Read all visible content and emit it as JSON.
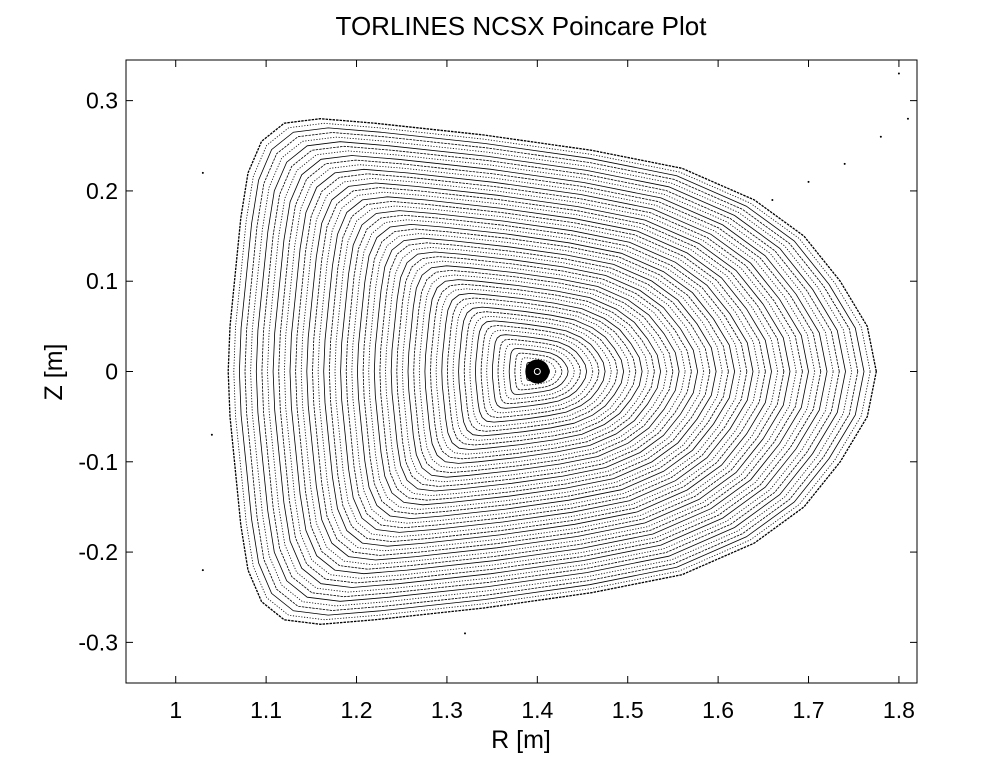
{
  "chart_data": {
    "type": "scatter",
    "title": "TORLINES NCSX Poincare Plot",
    "xlabel": "R [m]",
    "ylabel": "Z [m]",
    "xlim": [
      0.945,
      1.82
    ],
    "ylim": [
      -0.345,
      0.345
    ],
    "x_ticks": [
      1,
      1.1,
      1.2,
      1.3,
      1.4,
      1.5,
      1.6,
      1.7,
      1.8
    ],
    "x_tick_labels": [
      "1",
      "1.1",
      "1.2",
      "1.3",
      "1.4",
      "1.5",
      "1.6",
      "1.7",
      "1.8"
    ],
    "y_ticks": [
      0.3,
      0.2,
      0.1,
      0,
      -0.1,
      -0.2,
      -0.3
    ],
    "y_tick_labels": [
      "0.3",
      "0.2",
      "0.1",
      "0",
      "-0.1",
      "-0.2",
      "-0.3"
    ],
    "grid": false,
    "marker_color": "#000000",
    "magnetic_axis": {
      "R": 1.4,
      "Z": 0.0
    },
    "outer_boundary": {
      "R": [
        1.775,
        1.765,
        1.735,
        1.695,
        1.64,
        1.56,
        1.46,
        1.34,
        1.22,
        1.16,
        1.12,
        1.095,
        1.08,
        1.072,
        1.066,
        1.06,
        1.058,
        1.06,
        1.066,
        1.072,
        1.08,
        1.095,
        1.12,
        1.16,
        1.22,
        1.34,
        1.46,
        1.56,
        1.64,
        1.695,
        1.735,
        1.765,
        1.775
      ],
      "Z": [
        0.0,
        0.05,
        0.1,
        0.15,
        0.19,
        0.225,
        0.245,
        0.262,
        0.275,
        0.28,
        0.275,
        0.255,
        0.22,
        0.17,
        0.11,
        0.05,
        0.0,
        -0.05,
        -0.11,
        -0.17,
        -0.22,
        -0.255,
        -0.275,
        -0.28,
        -0.275,
        -0.262,
        -0.245,
        -0.225,
        -0.19,
        -0.15,
        -0.1,
        -0.05,
        0.0
      ]
    },
    "surface_count": 55,
    "stray_points": [
      {
        "R": 1.66,
        "Z": 0.19
      },
      {
        "R": 1.7,
        "Z": 0.21
      },
      {
        "R": 1.74,
        "Z": 0.23
      },
      {
        "R": 1.78,
        "Z": 0.26
      },
      {
        "R": 1.81,
        "Z": 0.28
      },
      {
        "R": 1.8,
        "Z": 0.33
      },
      {
        "R": 1.03,
        "Z": 0.22
      },
      {
        "R": 1.04,
        "Z": -0.07
      },
      {
        "R": 1.03,
        "Z": -0.22
      },
      {
        "R": 1.32,
        "Z": -0.29
      }
    ]
  }
}
